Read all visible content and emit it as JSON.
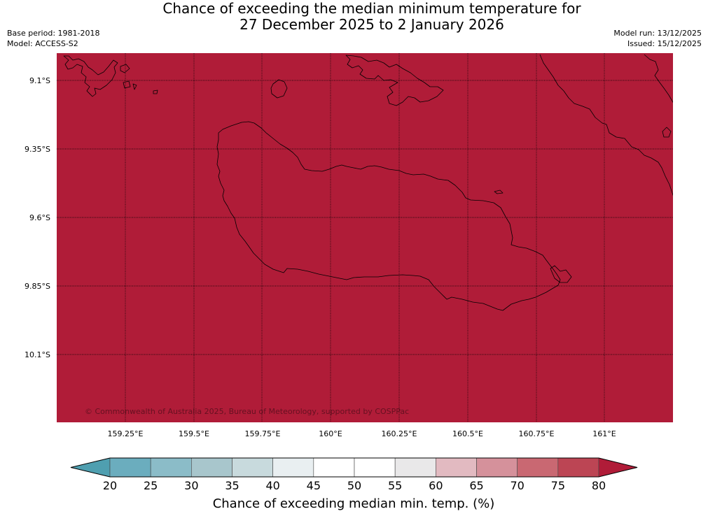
{
  "title": {
    "line1": "Chance of exceeding the median minimum temperature for",
    "line2": "27 December 2025 to 2 January 2026"
  },
  "header": {
    "base_period": "Base period: 1981-2018",
    "model": "Model: ACCESS-S2",
    "model_run": "Model run: 13/12/2025",
    "issued": "Issued: 15/12/2025"
  },
  "map": {
    "fill_color": "#b01c38",
    "coast_color": "#000000",
    "lat_labels": [
      "9.1°S",
      "9.35°S",
      "9.6°S",
      "9.85°S",
      "10.1°S"
    ],
    "lon_labels": [
      "159.25°E",
      "159.5°E",
      "159.75°E",
      "160°E",
      "160.25°E",
      "160.5°E",
      "160.75°E",
      "161°E"
    ],
    "copyright": "© Commonwealth of Australia 2025, Bureau of Meteorology, supported by COSPPac"
  },
  "legend": {
    "ticks": [
      "20",
      "25",
      "30",
      "35",
      "40",
      "45",
      "50",
      "55",
      "60",
      "65",
      "70",
      "75",
      "80"
    ],
    "colors": [
      "#4f9fb0",
      "#6badbe",
      "#8bbcc8",
      "#a8c6cc",
      "#c8dadd",
      "#e9eff1",
      "#ffffff",
      "#ffffff",
      "#e9e8e9",
      "#e2bac1",
      "#d5919b",
      "#c96872",
      "#bc4554",
      "#b01c38"
    ],
    "label": "Chance of exceeding median min. temp. (%)"
  }
}
